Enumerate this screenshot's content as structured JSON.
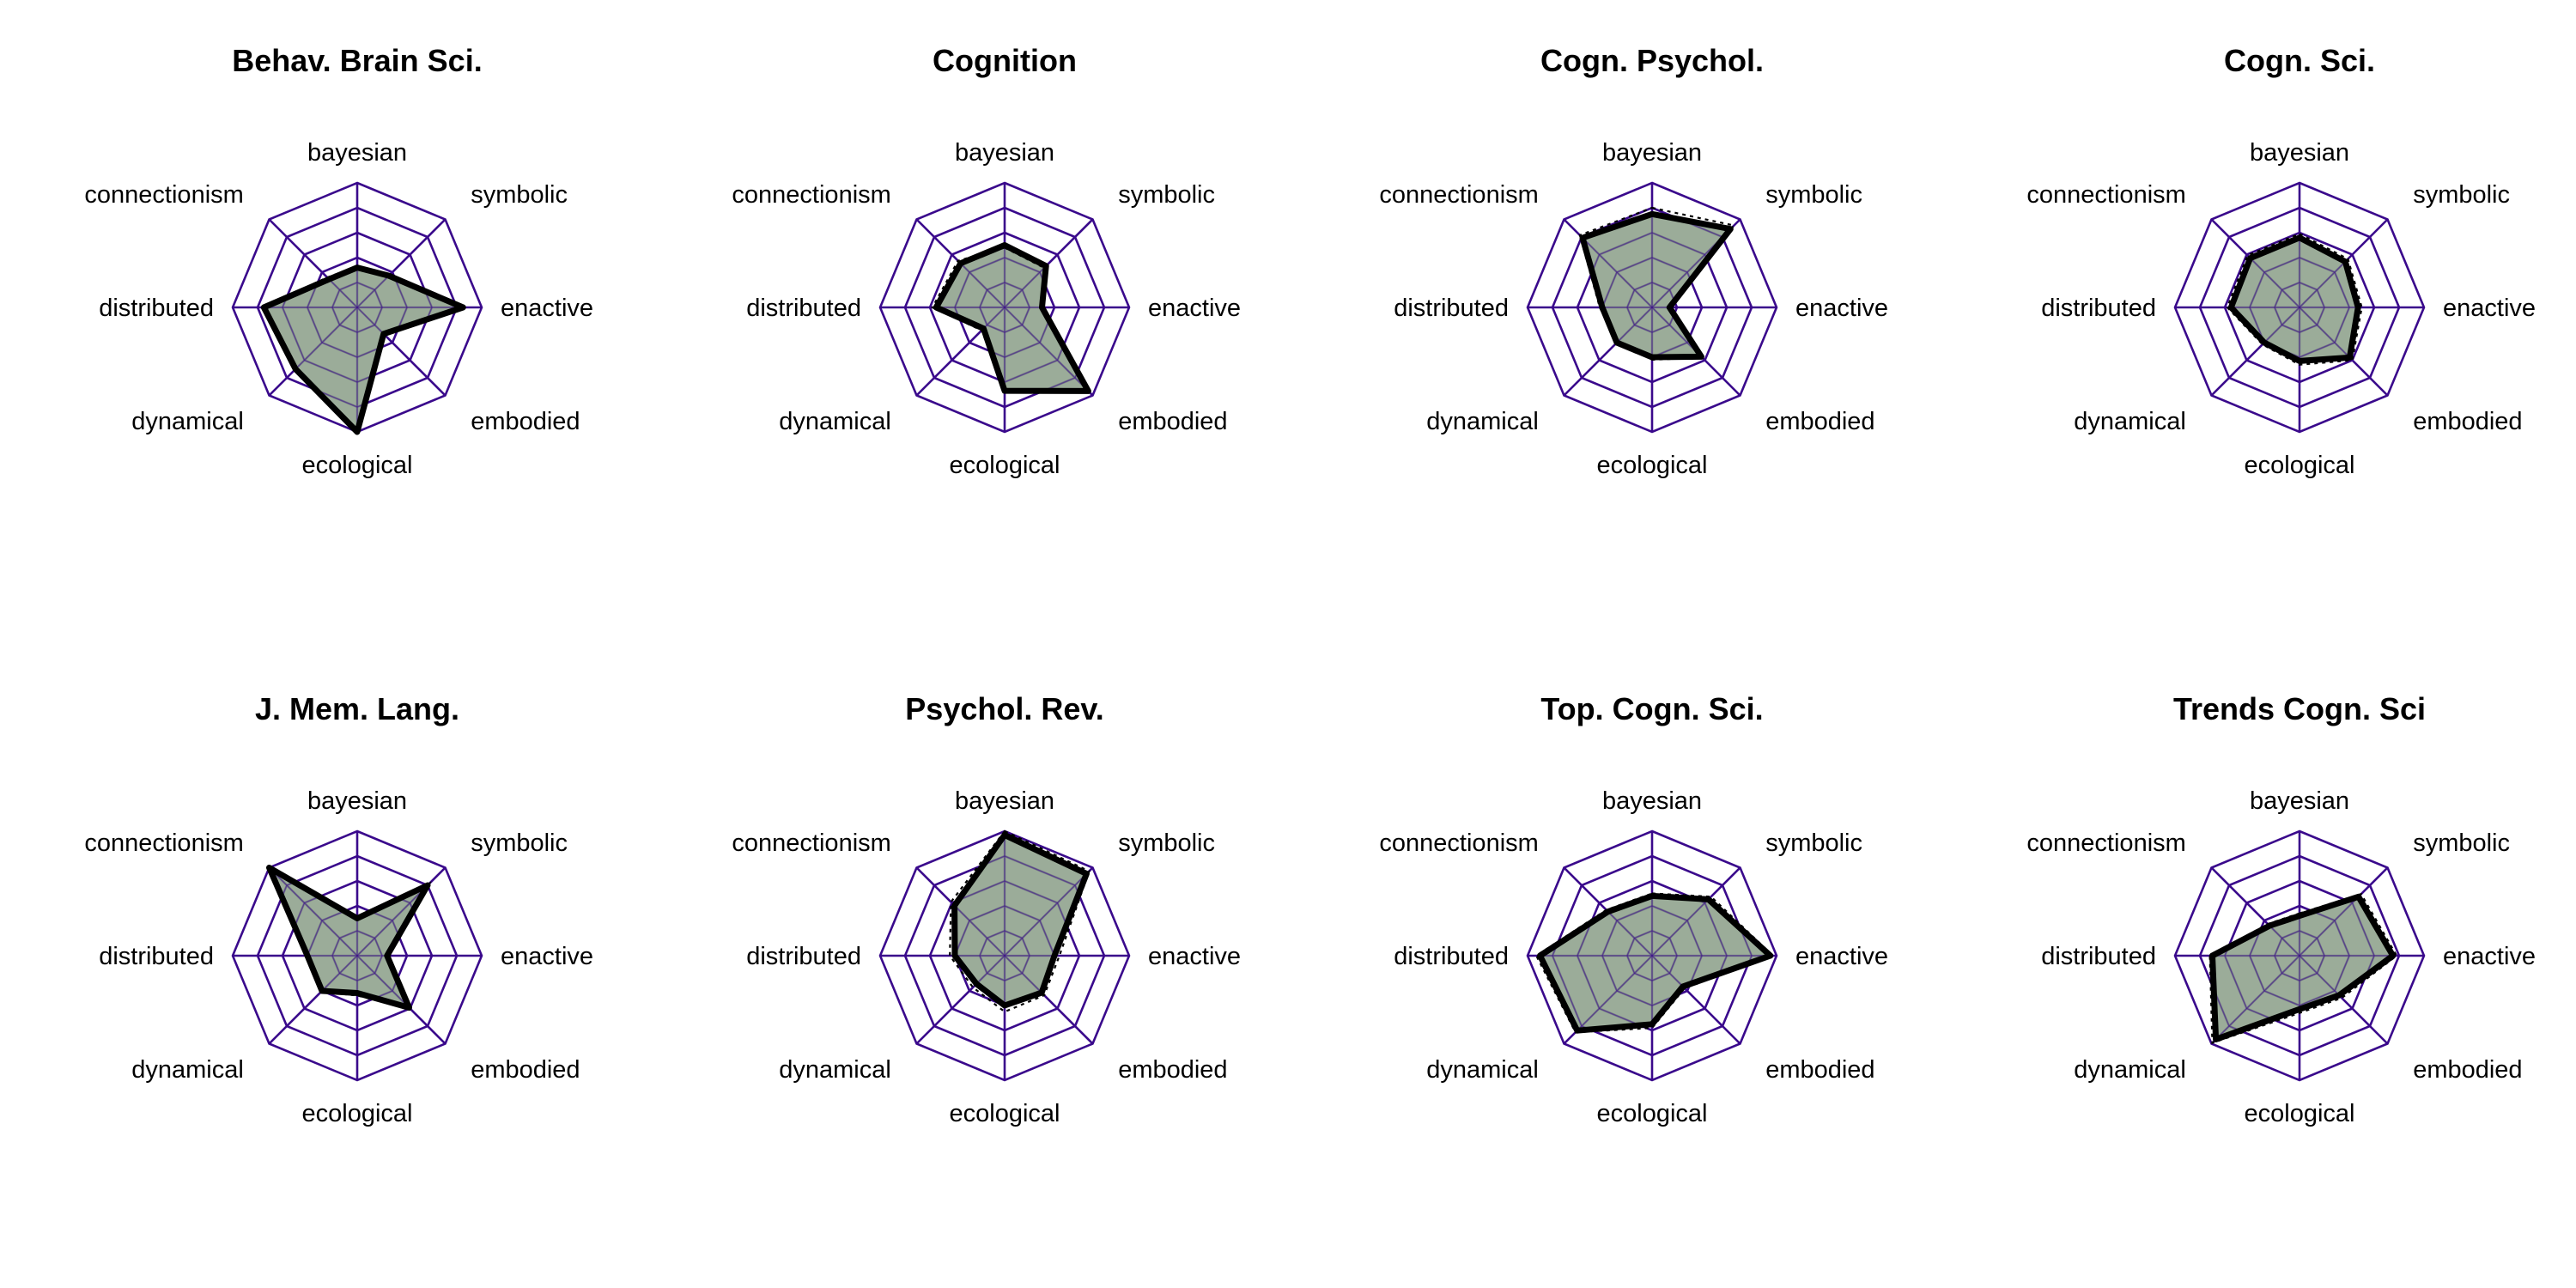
{
  "chart_data": {
    "type": "radar",
    "axes": [
      "bayesian",
      "symbolic",
      "enactive",
      "embodied",
      "ecological",
      "dynamical",
      "distributed",
      "connectionism"
    ],
    "range": [
      0,
      1
    ],
    "grid_levels": 5,
    "colors": {
      "grid": "#3a0a8c",
      "fill": "#8a9e87",
      "line": "#000000"
    },
    "panels": [
      {
        "title": "Behav. Brain Sci.",
        "values": [
          0.32,
          0.36,
          0.85,
          0.3,
          1.0,
          0.7,
          0.75,
          0.32
        ],
        "dotted": [
          0.33,
          0.37,
          0.85,
          0.31,
          0.99,
          0.71,
          0.76,
          0.34
        ]
      },
      {
        "title": "Cognition",
        "values": [
          0.5,
          0.47,
          0.3,
          0.95,
          0.67,
          0.24,
          0.55,
          0.5
        ],
        "dotted": [
          0.48,
          0.45,
          0.3,
          0.95,
          0.66,
          0.26,
          0.58,
          0.53
        ]
      },
      {
        "title": "Cogn. Psychol.",
        "values": [
          0.75,
          0.89,
          0.14,
          0.56,
          0.4,
          0.4,
          0.4,
          0.79
        ],
        "dotted": [
          0.8,
          0.93,
          0.15,
          0.57,
          0.42,
          0.4,
          0.42,
          0.82
        ]
      },
      {
        "title": "Cogn. Sci.",
        "values": [
          0.56,
          0.52,
          0.47,
          0.57,
          0.43,
          0.4,
          0.55,
          0.56
        ],
        "dotted": [
          0.59,
          0.55,
          0.5,
          0.6,
          0.46,
          0.42,
          0.58,
          0.59
        ]
      },
      {
        "title": "J. Mem. Lang.",
        "values": [
          0.3,
          0.8,
          0.24,
          0.59,
          0.3,
          0.4,
          0.4,
          1.0
        ],
        "dotted": [
          0.31,
          0.82,
          0.24,
          0.6,
          0.32,
          0.41,
          0.41,
          0.99
        ]
      },
      {
        "title": "Psychol. Rev.",
        "values": [
          0.97,
          0.93,
          0.4,
          0.42,
          0.4,
          0.32,
          0.4,
          0.57
        ],
        "dotted": [
          1.0,
          0.96,
          0.44,
          0.45,
          0.45,
          0.36,
          0.44,
          0.61
        ]
      },
      {
        "title": "Top. Cogn. Sci.",
        "values": [
          0.48,
          0.64,
          0.95,
          0.35,
          0.55,
          0.85,
          0.9,
          0.5
        ],
        "dotted": [
          0.5,
          0.67,
          0.97,
          0.37,
          0.58,
          0.87,
          0.93,
          0.52
        ]
      },
      {
        "title": "Trends Cogn. Sci",
        "values": [
          0.32,
          0.67,
          0.75,
          0.45,
          0.43,
          0.95,
          0.7,
          0.34
        ],
        "dotted": [
          0.34,
          0.7,
          0.78,
          0.48,
          0.46,
          0.99,
          0.72,
          0.36
        ]
      }
    ]
  }
}
